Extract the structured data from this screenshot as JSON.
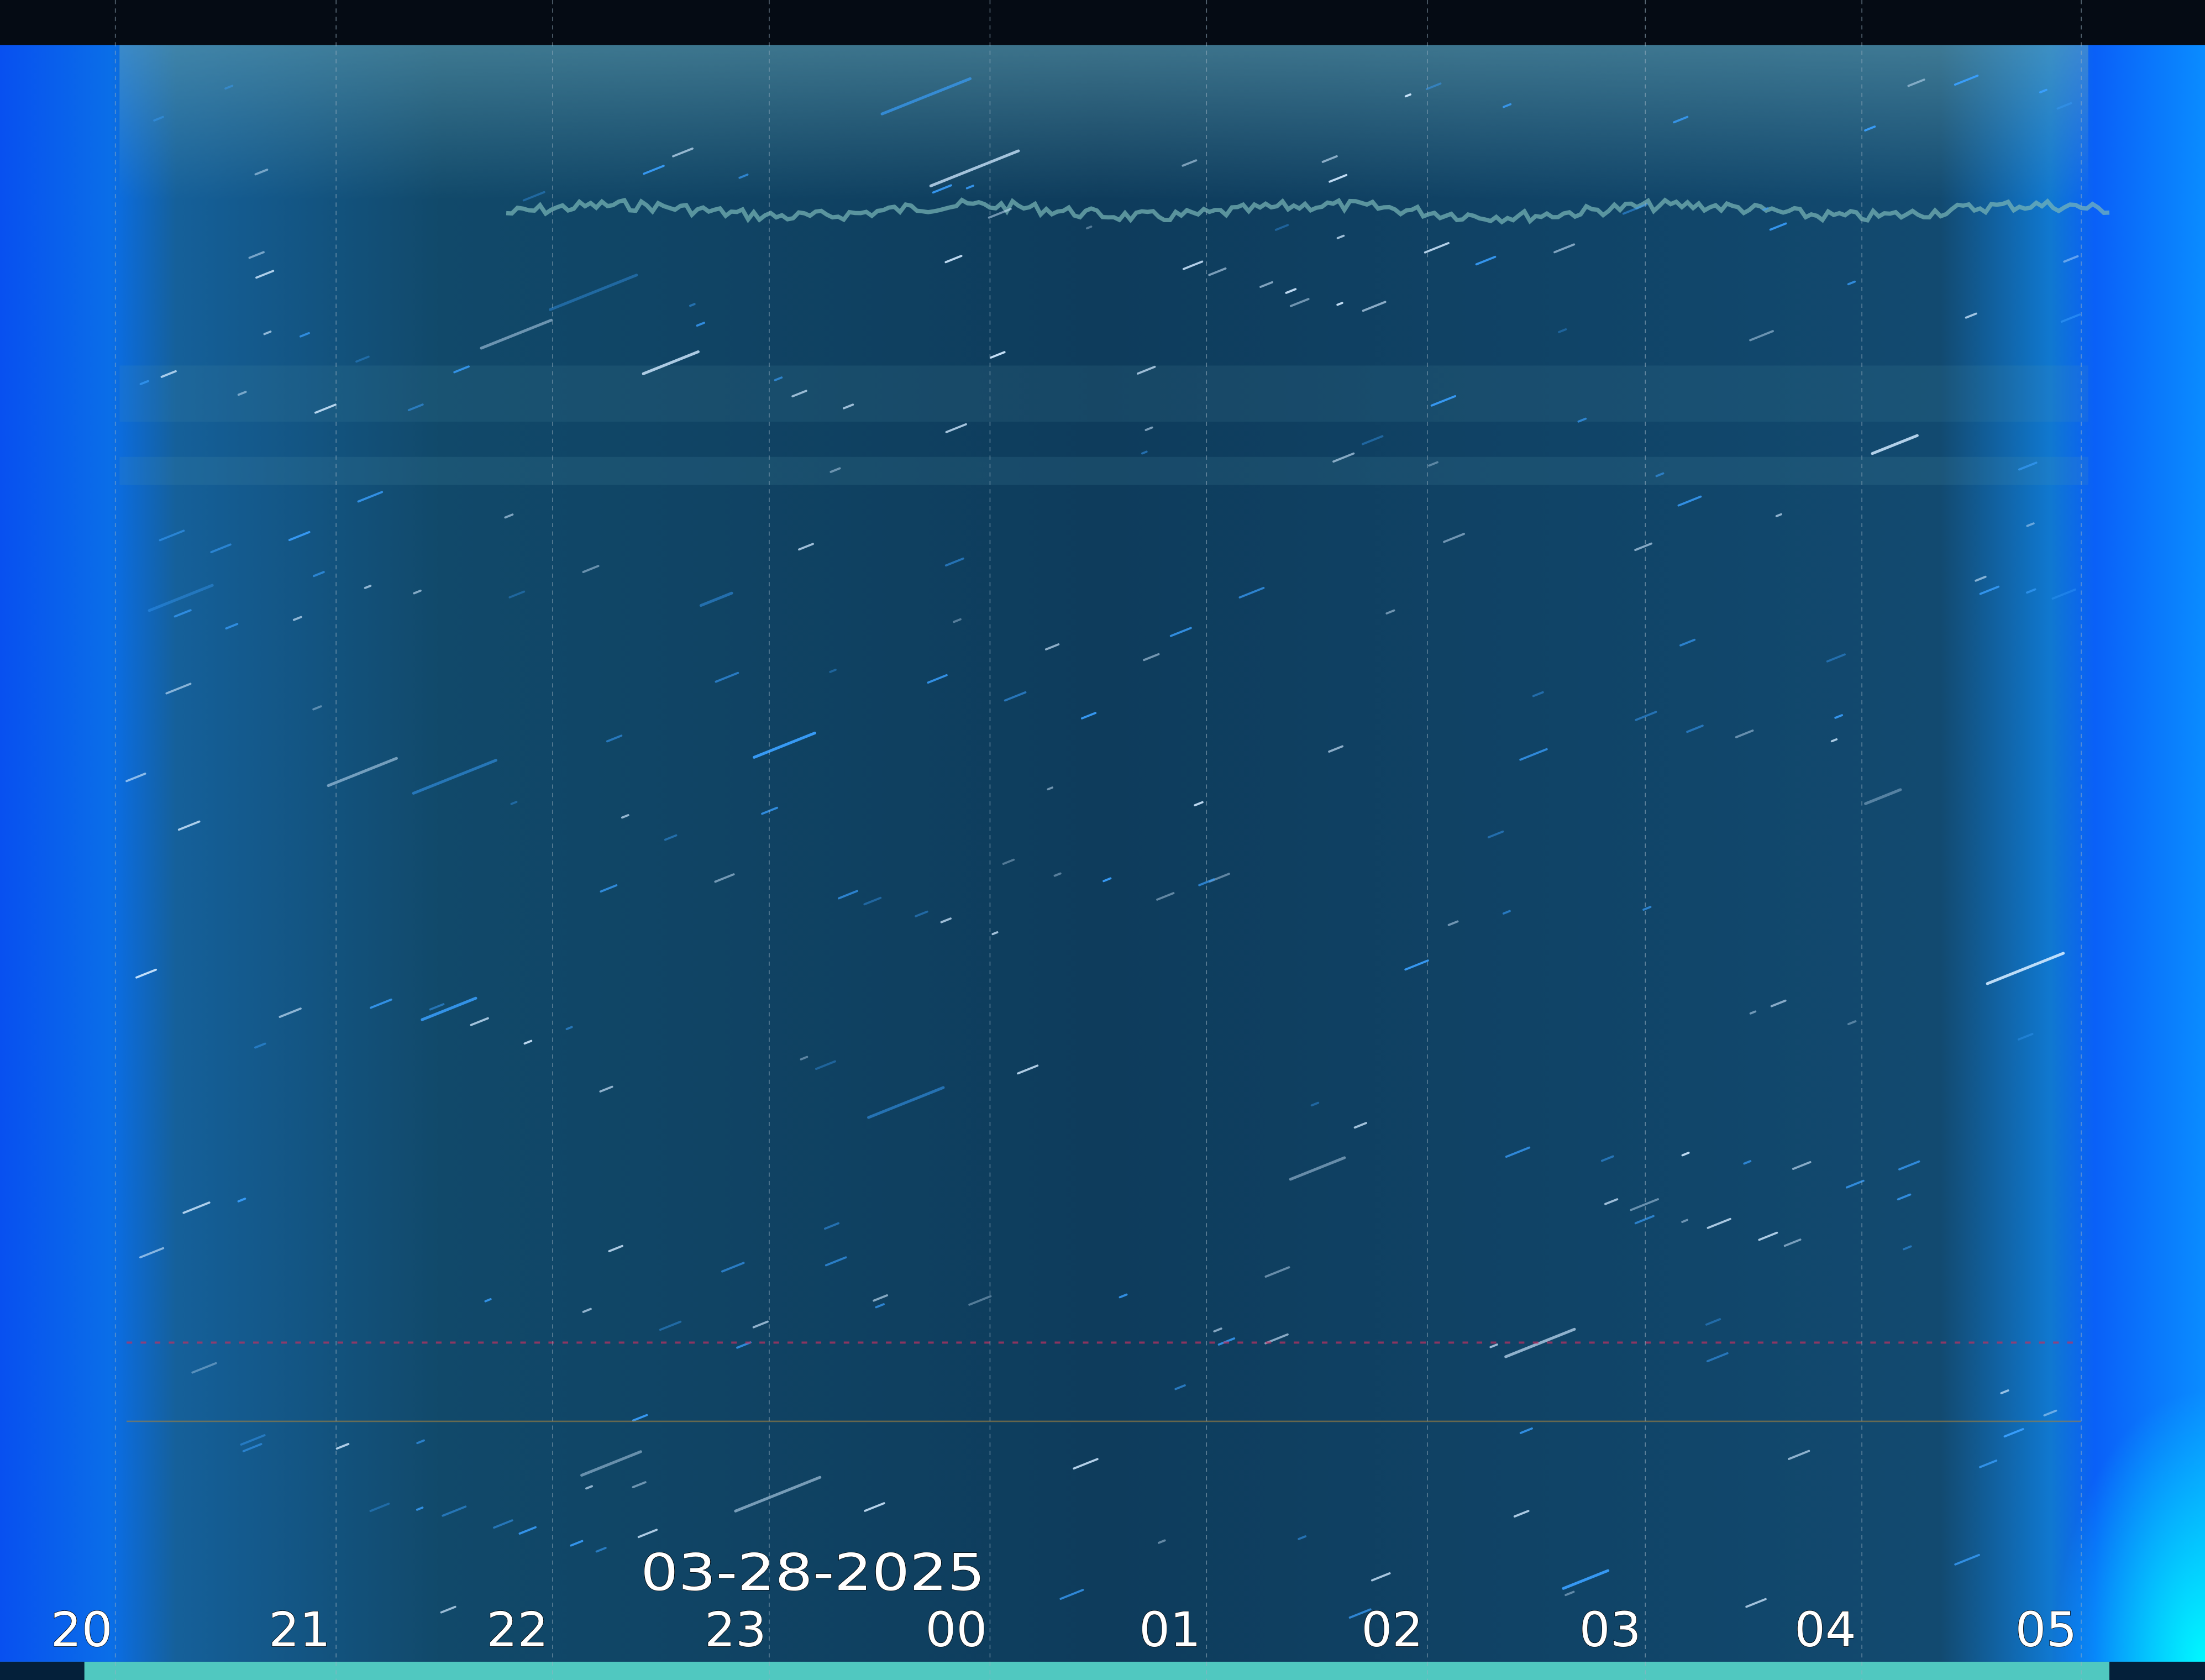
{
  "date_label": "03-28-2025",
  "hour_labels": [
    "20",
    "21",
    "22",
    "23",
    "00",
    "01",
    "02",
    "03",
    "04",
    "05"
  ],
  "colors": {
    "sky": "#0d3f5e",
    "twilight": "#0a5cf0",
    "dawn_glow": "#00f0ff",
    "ground": "#50c8c0",
    "grid": "#9ab0c0"
  }
}
